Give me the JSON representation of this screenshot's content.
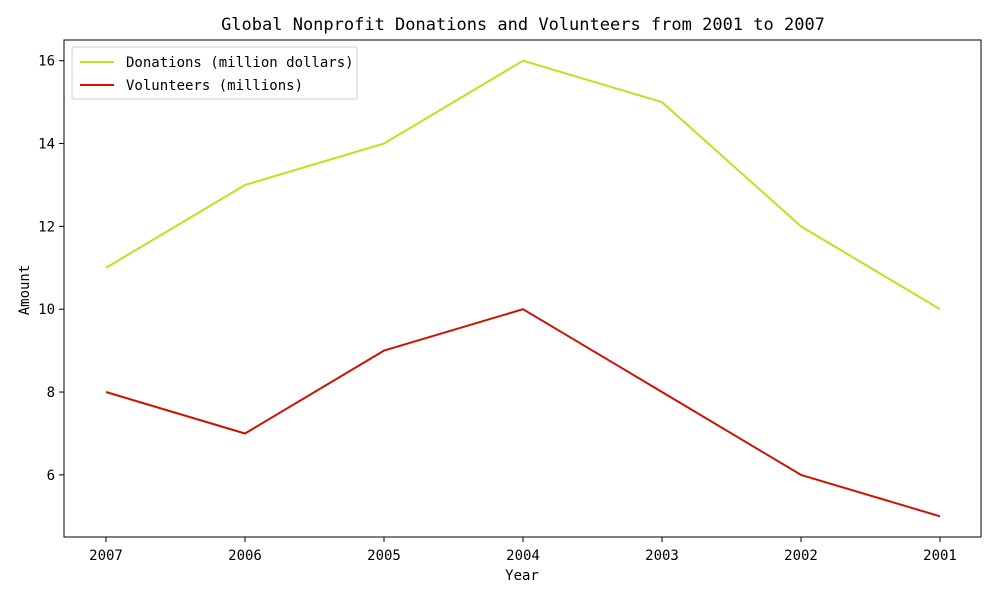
{
  "chart_data": {
    "type": "line",
    "title": "Global Nonprofit Donations and Volunteers from 2001 to 2007",
    "xlabel": "Year",
    "ylabel": "Amount",
    "categories": [
      "2007",
      "2006",
      "2005",
      "2004",
      "2003",
      "2002",
      "2001"
    ],
    "yticks": [
      "6",
      "8",
      "10",
      "12",
      "14",
      "16"
    ],
    "ylim": [
      4.5,
      16.5
    ],
    "grid": false,
    "legend_position": "upper-left",
    "series": [
      {
        "name": "Donations (million dollars)",
        "color": "#b5e61d",
        "values": [
          11,
          13,
          14,
          16,
          15,
          12,
          10
        ]
      },
      {
        "name": "Volunteers (millions)",
        "color": "#cc1100",
        "values": [
          8,
          7,
          9,
          10,
          8,
          6,
          5
        ]
      }
    ]
  }
}
